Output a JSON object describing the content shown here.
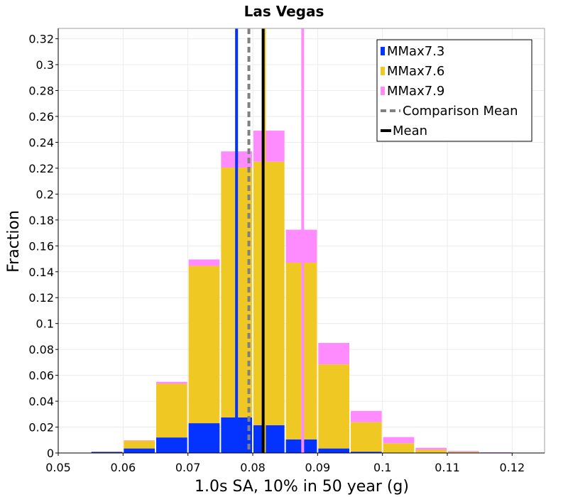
{
  "chart_data": {
    "type": "bar",
    "stacked": true,
    "title": "Las Vegas",
    "xlabel": "1.0s SA, 10% in 50 year (g)",
    "ylabel": "Fraction",
    "xlim": [
      0.05,
      0.125
    ],
    "ylim": [
      0,
      0.328
    ],
    "grid": true,
    "legend_position": "top-right",
    "x_ticks": [
      "0.05",
      "0.06",
      "0.07",
      "0.08",
      "0.09",
      "0.1",
      "0.11",
      "0.12"
    ],
    "y_ticks": [
      "0",
      "0.02",
      "0.04",
      "0.06",
      "0.08",
      "0.1",
      "0.12",
      "0.14",
      "0.16",
      "0.18",
      "0.2",
      "0.22",
      "0.24",
      "0.26",
      "0.28",
      "0.3",
      "0.32"
    ],
    "bin_centers": [
      0.0575,
      0.0625,
      0.0675,
      0.0725,
      0.0775,
      0.0825,
      0.0875,
      0.0925,
      0.0975,
      0.1025,
      0.1075,
      0.1125,
      0.1175
    ],
    "bin_width": 0.005,
    "series": [
      {
        "name": "MMax7.3",
        "color": "#0433ff",
        "values": [
          0.0008,
          0.0035,
          0.012,
          0.023,
          0.0275,
          0.0215,
          0.0105,
          0.0035,
          0.001,
          0.0003,
          0.0001,
          0.0,
          0.0
        ]
      },
      {
        "name": "MMax7.6",
        "color": "#f0c824",
        "values": [
          0.0002,
          0.006,
          0.0415,
          0.1215,
          0.193,
          0.2035,
          0.1365,
          0.065,
          0.0228,
          0.0072,
          0.0024,
          0.0008,
          0.0002
        ]
      },
      {
        "name": "MMax7.9",
        "color": "#ff8cff",
        "values": [
          0.0,
          0.0003,
          0.0015,
          0.005,
          0.0125,
          0.024,
          0.0255,
          0.0165,
          0.0087,
          0.0048,
          0.0015,
          0.0007,
          0.0002
        ]
      }
    ],
    "vertical_lines": [
      {
        "label": "MMax7.3 mean",
        "x": 0.0775,
        "color": "#0433ff",
        "style": "solid"
      },
      {
        "label": "MMax7.6 mean",
        "x": 0.0818,
        "color": "#f0c824",
        "style": "solid"
      },
      {
        "label": "MMax7.9 mean",
        "x": 0.0877,
        "color": "#ff8cff",
        "style": "solid"
      },
      {
        "name": "Comparison Mean",
        "x": 0.0794,
        "color": "#808080",
        "style": "dashed"
      },
      {
        "name": "Mean",
        "x": 0.0816,
        "color": "#000000",
        "style": "solid"
      }
    ],
    "legend": [
      {
        "label": "MMax7.3",
        "kind": "box",
        "color": "#0433ff"
      },
      {
        "label": "MMax7.6",
        "kind": "box",
        "color": "#f0c824"
      },
      {
        "label": "MMax7.9",
        "kind": "box",
        "color": "#ff8cff"
      },
      {
        "label": "Comparison Mean",
        "kind": "dashed",
        "color": "#808080"
      },
      {
        "label": "Mean",
        "kind": "line",
        "color": "#000000"
      }
    ]
  }
}
